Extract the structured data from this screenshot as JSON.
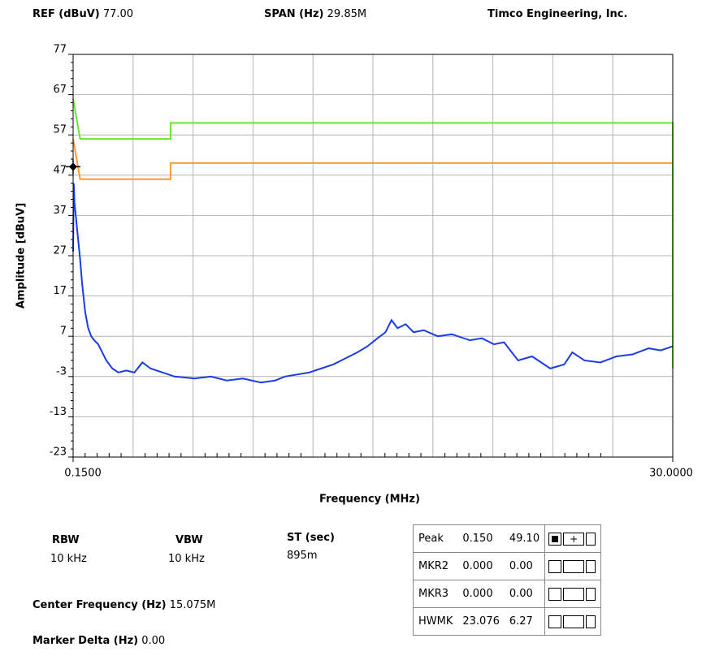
{
  "header": {
    "ref_label": "REF (dBuV)",
    "ref_value": "77.00",
    "span_label": "SPAN (Hz)",
    "span_value": "29.85M",
    "company": "Timco Engineering, Inc."
  },
  "chart_data": {
    "type": "line",
    "xlabel": "Frequency (MHz)",
    "ylabel": "Amplitude [dBuV]",
    "xlim": [
      0.15,
      30
    ],
    "ylim": [
      -23,
      77
    ],
    "xticks": [
      {
        "value": 0.15,
        "label": "0.1500"
      },
      {
        "value": 30,
        "label": "30.0000"
      }
    ],
    "yticks": [
      -23,
      -13,
      -3,
      7,
      17,
      27,
      37,
      47,
      57,
      67,
      77
    ],
    "xgrid_divisions": 10,
    "grid": true,
    "series": [
      {
        "color": "#66e633",
        "x": [
          0.15,
          0.5,
          5,
          5,
          30,
          30
        ],
        "values": [
          66,
          56,
          56,
          60,
          60,
          -1
        ]
      },
      {
        "color": "#ff9933",
        "x": [
          0.15,
          0.5,
          5,
          5,
          30
        ],
        "values": [
          56,
          46,
          46,
          50,
          50
        ]
      },
      {
        "color": "#1a3ce6",
        "x": [
          0.15,
          0.18,
          0.22,
          0.3,
          0.4,
          0.5,
          0.6,
          0.75,
          0.9,
          1.05,
          1.2,
          1.4,
          1.6,
          1.8,
          2.1,
          2.4,
          2.8,
          3.2,
          3.6,
          4.0,
          4.6,
          5.2,
          6.2,
          7.0,
          7.8,
          8.6,
          9.5,
          10.2,
          10.7,
          11.3,
          11.9,
          12.5,
          13.1,
          13.7,
          14.3,
          14.8,
          15.3,
          15.7,
          16.0,
          16.3,
          16.7,
          17.1,
          17.6,
          18.3,
          19.0,
          19.9,
          20.5,
          21.1,
          21.6,
          22.3,
          23.0,
          23.9,
          24.6,
          25.0,
          25.6,
          26.4,
          27.2,
          28.0,
          28.8,
          29.4,
          30.0
        ],
        "values": [
          28,
          45,
          40,
          36,
          31,
          26,
          20,
          13,
          9,
          7,
          6,
          5,
          3,
          1,
          -1,
          -2,
          -1.5,
          -2,
          0.5,
          -1,
          -2,
          -3,
          -3.5,
          -3,
          -4,
          -3.5,
          -4.5,
          -4,
          -3,
          -2.5,
          -2,
          -1,
          0,
          1.5,
          3,
          4.5,
          6.5,
          8,
          11,
          9,
          10,
          8,
          8.5,
          7,
          7.5,
          6,
          6.5,
          5,
          5.5,
          1,
          2,
          -1,
          0,
          3,
          1,
          0.5,
          2,
          2.5,
          4,
          3.5,
          4.5
        ]
      }
    ],
    "marker": {
      "x": 0.15,
      "y": 49.1,
      "color": "#000000"
    }
  },
  "settings": {
    "rbw_label": "RBW",
    "rbw_value": "10 kHz",
    "vbw_label": "VBW",
    "vbw_value": "10 kHz",
    "st_label": "ST (sec)",
    "st_value": "895m",
    "center_label": "Center Frequency (Hz)",
    "center_value": "15.075M",
    "delta_label": "Marker Delta (Hz)",
    "delta_value": "0.00"
  },
  "markers_table": {
    "rows": [
      [
        "Peak",
        "0.150",
        "49.10"
      ],
      [
        "MKR2",
        "0.000",
        "0.00"
      ],
      [
        "MKR3",
        "0.000",
        "0.00"
      ],
      [
        "HWMK",
        "23.076",
        "6.27"
      ]
    ]
  }
}
